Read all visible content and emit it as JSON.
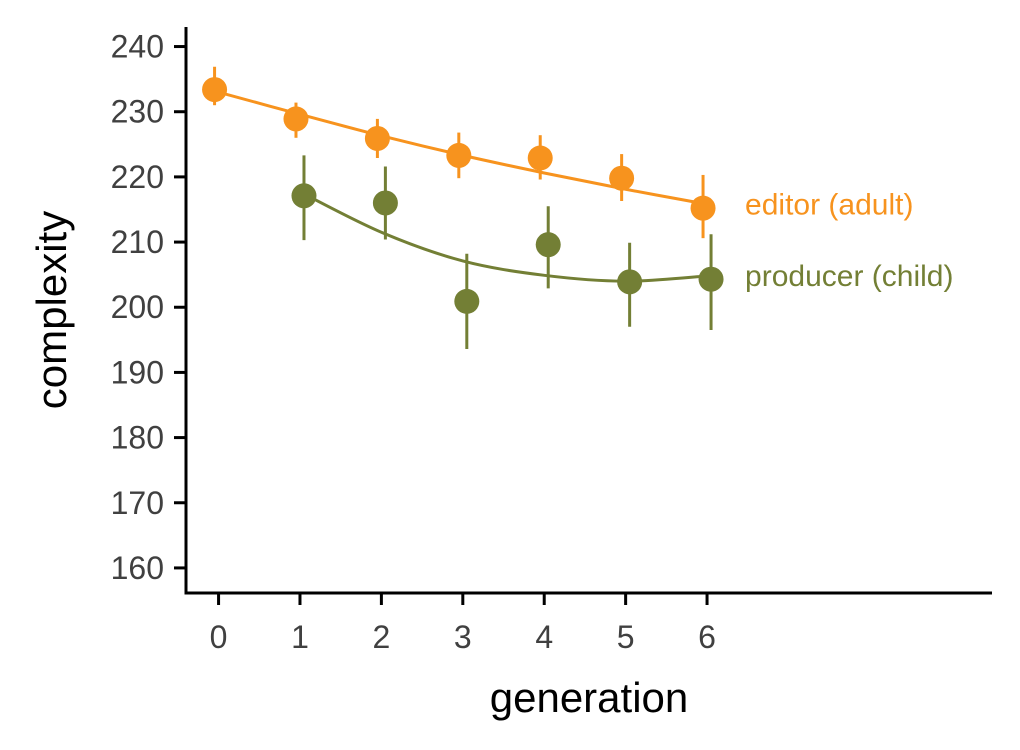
{
  "chart_data": {
    "type": "scatter",
    "xlabel": "generation",
    "ylabel": "complexity",
    "xlim": [
      -0.4,
      9.5
    ],
    "ylim": [
      156,
      243
    ],
    "xticks": [
      0,
      1,
      2,
      3,
      4,
      5,
      6
    ],
    "yticks": [
      160,
      170,
      180,
      190,
      200,
      210,
      220,
      230,
      240
    ],
    "grid": false,
    "legend": "direct labels at right end of each series",
    "series": [
      {
        "name": "editor (adult)",
        "color": "#F7931E",
        "x": [
          0,
          1,
          2,
          3,
          4,
          5,
          6
        ],
        "y": [
          233.4,
          228.9,
          225.9,
          223.3,
          222.9,
          219.8,
          215.2
        ],
        "err_low": [
          231.0,
          226.0,
          222.9,
          219.8,
          219.6,
          216.3,
          210.6
        ],
        "err_high": [
          236.9,
          231.4,
          228.9,
          226.8,
          226.4,
          223.5,
          220.3
        ],
        "fit": {
          "x_start": 0,
          "x_end": 6,
          "y": [
            233.0,
            229.6,
            226.3,
            223.3,
            220.6,
            218.1,
            215.8
          ]
        }
      },
      {
        "name": "producer (child)",
        "color": "#737F35",
        "x": [
          1,
          2,
          3,
          4,
          5,
          6
        ],
        "y": [
          217.1,
          216.0,
          200.9,
          209.6,
          203.9,
          204.3
        ],
        "err_low": [
          210.3,
          210.4,
          193.6,
          202.9,
          197.0,
          196.5
        ],
        "err_high": [
          223.3,
          221.6,
          208.2,
          215.5,
          209.9,
          211.2
        ],
        "fit": {
          "x_start": 1,
          "x_end": 6,
          "y": [
            217.7,
            211.5,
            207.1,
            204.9,
            204.0,
            204.8
          ]
        }
      }
    ]
  }
}
